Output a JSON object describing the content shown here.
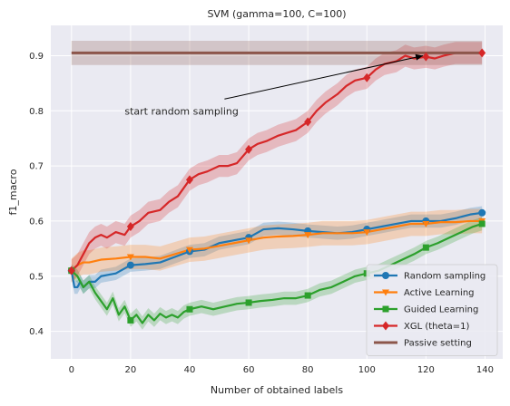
{
  "chart_data": {
    "type": "line",
    "title": "SVM (gamma=100, C=100)",
    "xlabel": "Number of obtained labels",
    "ylabel": "f1_macro",
    "xlim": [
      -7,
      146
    ],
    "ylim": [
      0.35,
      0.955
    ],
    "xticks": [
      0,
      20,
      40,
      60,
      80,
      100,
      120,
      140
    ],
    "yticks": [
      0.4,
      0.5,
      0.6,
      0.7,
      0.8,
      0.9
    ],
    "ytick_labels": [
      "0.4",
      "0.5",
      "0.6",
      "0.7",
      "0.8",
      "0.9"
    ],
    "grid": true,
    "legend_position": "lower-right",
    "background": "#eaeaf2",
    "annotation": {
      "text": "start random sampling",
      "text_x": 18,
      "text_y": 0.8,
      "arrow_to_x": 119,
      "arrow_to_y": 0.9
    },
    "series": [
      {
        "name": "Random sampling",
        "color": "#1f77b4",
        "marker": "circle",
        "band": 0.012,
        "x": [
          0,
          1,
          2,
          3,
          4,
          6,
          8,
          10,
          15,
          20,
          25,
          30,
          35,
          40,
          45,
          50,
          55,
          60,
          65,
          70,
          75,
          80,
          85,
          90,
          95,
          100,
          105,
          110,
          115,
          120,
          125,
          130,
          135,
          139
        ],
        "values": [
          0.51,
          0.48,
          0.48,
          0.49,
          0.48,
          0.49,
          0.49,
          0.5,
          0.505,
          0.52,
          0.522,
          0.525,
          0.535,
          0.545,
          0.548,
          0.56,
          0.565,
          0.57,
          0.585,
          0.587,
          0.585,
          0.582,
          0.58,
          0.578,
          0.58,
          0.585,
          0.59,
          0.595,
          0.6,
          0.6,
          0.6,
          0.605,
          0.612,
          0.615
        ],
        "marker_x": [
          0,
          20,
          40,
          60,
          80,
          100,
          120,
          139
        ],
        "marker_values": [
          0.51,
          0.52,
          0.545,
          0.57,
          0.582,
          0.585,
          0.6,
          0.615
        ]
      },
      {
        "name": "Active Learning",
        "color": "#ff7f0e",
        "marker": "triangle-down",
        "band": 0.022,
        "x": [
          0,
          2,
          4,
          6,
          10,
          15,
          20,
          25,
          30,
          35,
          40,
          45,
          50,
          55,
          60,
          65,
          70,
          75,
          80,
          85,
          90,
          95,
          100,
          105,
          110,
          115,
          120,
          125,
          130,
          135,
          139
        ],
        "values": [
          0.51,
          0.52,
          0.525,
          0.525,
          0.53,
          0.532,
          0.535,
          0.535,
          0.532,
          0.54,
          0.548,
          0.55,
          0.555,
          0.56,
          0.565,
          0.57,
          0.572,
          0.573,
          0.575,
          0.578,
          0.578,
          0.578,
          0.58,
          0.585,
          0.59,
          0.595,
          0.595,
          0.598,
          0.598,
          0.6,
          0.6
        ],
        "marker_x": [
          0,
          20,
          40,
          60,
          80,
          100,
          120,
          139
        ],
        "marker_values": [
          0.51,
          0.535,
          0.548,
          0.565,
          0.575,
          0.58,
          0.595,
          0.6
        ]
      },
      {
        "name": "Guided Learning",
        "color": "#2ca02c",
        "marker": "square",
        "band": 0.012,
        "x": [
          0,
          2,
          4,
          6,
          8,
          10,
          12,
          14,
          16,
          18,
          20,
          22,
          24,
          26,
          28,
          30,
          32,
          34,
          36,
          38,
          40,
          44,
          48,
          52,
          56,
          60,
          64,
          68,
          72,
          76,
          80,
          84,
          88,
          92,
          96,
          100,
          104,
          108,
          112,
          116,
          120,
          124,
          128,
          132,
          136,
          139
        ],
        "values": [
          0.51,
          0.5,
          0.48,
          0.49,
          0.47,
          0.455,
          0.44,
          0.46,
          0.43,
          0.445,
          0.42,
          0.43,
          0.415,
          0.43,
          0.42,
          0.432,
          0.425,
          0.43,
          0.425,
          0.435,
          0.44,
          0.445,
          0.44,
          0.445,
          0.45,
          0.452,
          0.455,
          0.457,
          0.46,
          0.46,
          0.465,
          0.475,
          0.48,
          0.49,
          0.5,
          0.505,
          0.51,
          0.52,
          0.53,
          0.54,
          0.552,
          0.56,
          0.57,
          0.58,
          0.59,
          0.595
        ],
        "marker_x": [
          0,
          20,
          40,
          60,
          80,
          100,
          120,
          139
        ],
        "marker_values": [
          0.51,
          0.42,
          0.44,
          0.452,
          0.465,
          0.505,
          0.552,
          0.595
        ]
      },
      {
        "name": "XGL (theta=1)",
        "color": "#d62728",
        "marker": "diamond",
        "band": 0.02,
        "x": [
          0,
          2,
          4,
          6,
          8,
          10,
          12,
          15,
          18,
          20,
          23,
          26,
          30,
          33,
          36,
          40,
          43,
          46,
          50,
          53,
          56,
          60,
          63,
          66,
          70,
          73,
          76,
          80,
          83,
          86,
          90,
          93,
          96,
          100,
          103,
          106,
          110,
          113,
          116,
          120,
          123,
          126,
          130,
          135,
          139
        ],
        "values": [
          0.51,
          0.52,
          0.54,
          0.56,
          0.57,
          0.575,
          0.57,
          0.58,
          0.575,
          0.59,
          0.6,
          0.615,
          0.62,
          0.635,
          0.645,
          0.675,
          0.685,
          0.69,
          0.7,
          0.7,
          0.705,
          0.73,
          0.74,
          0.745,
          0.755,
          0.76,
          0.765,
          0.78,
          0.8,
          0.815,
          0.83,
          0.845,
          0.855,
          0.86,
          0.875,
          0.885,
          0.89,
          0.9,
          0.895,
          0.898,
          0.895,
          0.9,
          0.905,
          0.905,
          0.905
        ],
        "marker_x": [
          0,
          20,
          40,
          60,
          80,
          100,
          120,
          139
        ],
        "marker_values": [
          0.51,
          0.59,
          0.675,
          0.73,
          0.78,
          0.86,
          0.898,
          0.905
        ]
      },
      {
        "name": "Passive setting",
        "color": "#8c564b",
        "marker": "none",
        "band": 0.022,
        "x": [
          0,
          139
        ],
        "values": [
          0.905,
          0.905
        ]
      }
    ]
  }
}
